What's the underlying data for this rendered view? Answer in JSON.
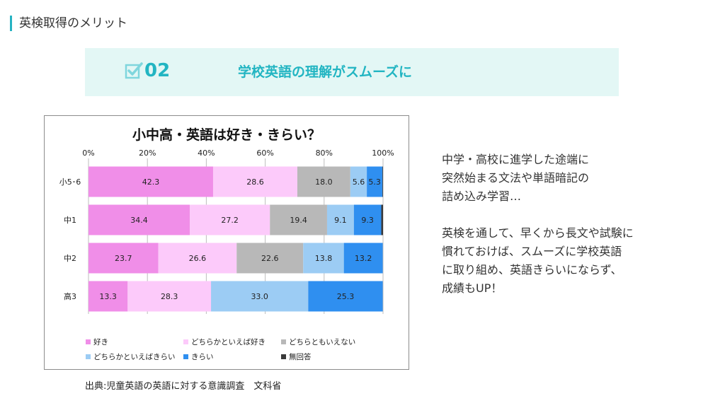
{
  "section": {
    "title": "英検取得のメリット"
  },
  "banner": {
    "number": "02",
    "headline": "学校英語の理解がスムーズに",
    "icon": "checkbox-icon",
    "accent": "#22b5c2",
    "background": "#e3f7f5"
  },
  "chart_data": {
    "type": "bar",
    "orientation": "horizontal-stacked-100",
    "title": "小中高・英語は好き・きらい？",
    "categories": [
      "小5･6",
      "中1",
      "中2",
      "高3"
    ],
    "xlim": [
      0,
      100
    ],
    "xticks": [
      "0%",
      "20%",
      "40%",
      "60%",
      "80%",
      "100%"
    ],
    "grid": true,
    "legend_position": "bottom",
    "series": [
      {
        "name": "好き",
        "color": "#f08ee8",
        "values": [
          42.3,
          34.4,
          23.7,
          13.3
        ]
      },
      {
        "name": "どちらかといえば好き",
        "color": "#fccafa",
        "values": [
          28.6,
          27.2,
          26.6,
          28.3
        ]
      },
      {
        "name": "どちらともいえない",
        "color": "#b8b8b8",
        "values": [
          18.0,
          19.4,
          22.6,
          0
        ]
      },
      {
        "name": "どちらかといえばきらい",
        "color": "#9cccf4",
        "values": [
          5.6,
          9.1,
          13.8,
          33.0
        ]
      },
      {
        "name": "きらい",
        "color": "#2f8ff0",
        "values": [
          5.3,
          9.3,
          13.2,
          25.3
        ]
      },
      {
        "name": "無回答",
        "color": "#3a3a3a",
        "values": [
          0.2,
          0.6,
          0,
          0
        ]
      }
    ],
    "labels": [
      [
        "42.3",
        "28.6",
        "18.0",
        "5.6",
        "5.3",
        ""
      ],
      [
        "34.4",
        "27.2",
        "19.4",
        "9.1",
        "9.3",
        ""
      ],
      [
        "23.7",
        "26.6",
        "22.6",
        "13.8",
        "13.2",
        ""
      ],
      [
        "13.3",
        "28.3",
        "",
        "33.0",
        "25.3",
        ""
      ]
    ]
  },
  "source": "出典:児童英語の英語に対する意識調査　文科省",
  "side_text": {
    "para1": [
      "中学・高校に進学した途端に",
      "突然始まる文法や単語暗記の",
      "詰め込み学習…"
    ],
    "para2": [
      "英検を通して、早くから長文や試験に",
      "慣れておけば、スムーズに学校英語",
      "に取り組め、英語きらいにならず、",
      "成績もUP！"
    ]
  }
}
